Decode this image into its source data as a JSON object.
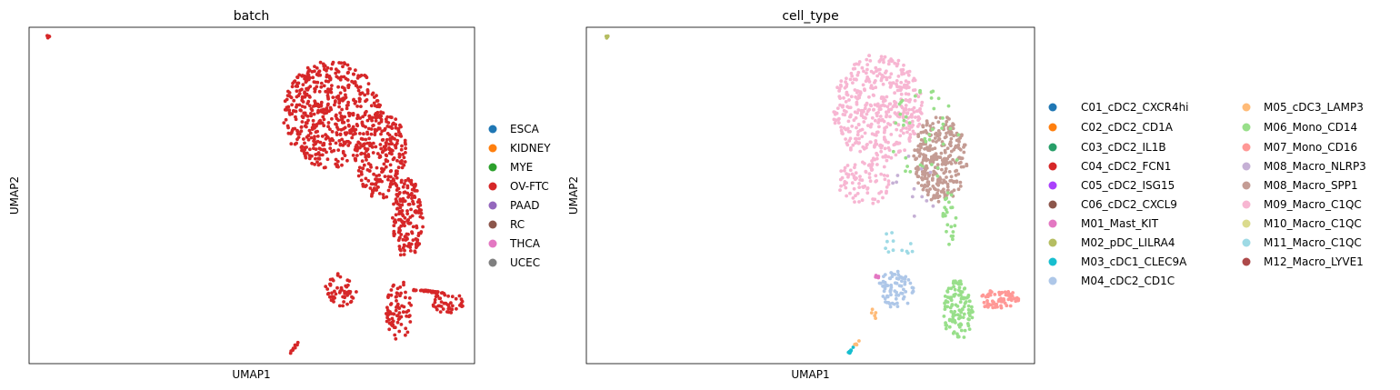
{
  "chart_data": [
    {
      "type": "scatter",
      "title": "batch",
      "xlabel": "UMAP1",
      "ylabel": "UMAP2",
      "xlim": [
        0,
        10
      ],
      "ylim": [
        0,
        10
      ],
      "grid": false,
      "ticks_visible": false,
      "legend_placement": "right",
      "legend_columns": 1,
      "legend": [
        {
          "name": "ESCA",
          "color": "#1f77b4"
        },
        {
          "name": "KIDNEY",
          "color": "#ff7f0e"
        },
        {
          "name": "MYE",
          "color": "#2ca02c"
        },
        {
          "name": "OV-FTC",
          "color": "#d62728"
        },
        {
          "name": "PAAD",
          "color": "#9467bd"
        },
        {
          "name": "RC",
          "color": "#8c564b"
        },
        {
          "name": "THCA",
          "color": "#e377c2"
        },
        {
          "name": "UCEC",
          "color": "#7f7f7f"
        }
      ],
      "regions": [
        {
          "category": "OV-FTC",
          "shape": "ellipse",
          "cx": 6.8,
          "cy": 7.4,
          "rx": 1.1,
          "ry": 1.6,
          "n": 520
        },
        {
          "category": "OV-FTC",
          "shape": "ellipse",
          "cx": 7.9,
          "cy": 6.2,
          "rx": 0.6,
          "ry": 1.3,
          "n": 240
        },
        {
          "category": "OV-FTC",
          "shape": "ellipse",
          "cx": 8.5,
          "cy": 4.3,
          "rx": 0.35,
          "ry": 1.2,
          "n": 170
        },
        {
          "category": "OV-FTC",
          "shape": "ellipse",
          "cx": 8.3,
          "cy": 1.6,
          "rx": 0.3,
          "ry": 0.9,
          "n": 80
        },
        {
          "category": "OV-FTC",
          "shape": "ellipse",
          "cx": 9.4,
          "cy": 1.8,
          "rx": 0.35,
          "ry": 0.35,
          "n": 45
        },
        {
          "category": "OV-FTC",
          "shape": "ellipse",
          "cx": 7.0,
          "cy": 2.2,
          "rx": 0.35,
          "ry": 0.5,
          "n": 55
        },
        {
          "category": "OV-FTC",
          "shape": "ellipse",
          "cx": 0.42,
          "cy": 9.72,
          "rx": 0.04,
          "ry": 0.04,
          "n": 6
        },
        {
          "category": "OV-FTC",
          "shape": "line",
          "x0": 5.85,
          "y0": 0.3,
          "x1": 6.05,
          "y1": 0.65,
          "n": 10
        },
        {
          "category": "OV-FTC",
          "shape": "line",
          "x0": 8.6,
          "y0": 2.2,
          "x1": 9.3,
          "y1": 2.1,
          "n": 35
        }
      ]
    },
    {
      "type": "scatter",
      "title": "cell_type",
      "xlabel": "UMAP1",
      "ylabel": "UMAP2",
      "xlim": [
        0,
        10
      ],
      "ylim": [
        0,
        10
      ],
      "grid": false,
      "ticks_visible": false,
      "legend_placement": "right",
      "legend_columns": 2,
      "legend": [
        {
          "name": "C01_cDC2_CXCR4hi",
          "color": "#1f77b4"
        },
        {
          "name": "C02_cDC2_CD1A",
          "color": "#ff7f0e"
        },
        {
          "name": "C03_cDC2_IL1B",
          "color": "#279e68"
        },
        {
          "name": "C04_cDC2_FCN1",
          "color": "#d62728"
        },
        {
          "name": "C05_cDC2_ISG15",
          "color": "#aa40fc"
        },
        {
          "name": "C06_cDC2_CXCL9",
          "color": "#8c564b"
        },
        {
          "name": "M01_Mast_KIT",
          "color": "#e377c2"
        },
        {
          "name": "M02_pDC_LILRA4",
          "color": "#b5bd61"
        },
        {
          "name": "M03_cDC1_CLEC9A",
          "color": "#17becf"
        },
        {
          "name": "M04_cDC2_CD1C",
          "color": "#aec7e8"
        },
        {
          "name": "M05_cDC3_LAMP3",
          "color": "#ffbb78"
        },
        {
          "name": "M06_Mono_CD14",
          "color": "#98df8a"
        },
        {
          "name": "M07_Mono_CD16",
          "color": "#ff9896"
        },
        {
          "name": "M08_Macro_NLRP3",
          "color": "#c5b0d5"
        },
        {
          "name": "M08_Macro_SPP1",
          "color": "#c49c94"
        },
        {
          "name": "M09_Macro_C1QC",
          "color": "#f7b6d2"
        },
        {
          "name": "M10_Macro_C1QC",
          "color": "#dbdb8d"
        },
        {
          "name": "M11_Macro_C1QC",
          "color": "#9edae5"
        },
        {
          "name": "M12_Macro_LYVE1",
          "color": "#ad494a"
        }
      ],
      "regions": [
        {
          "category": "M09_Macro_C1QC",
          "shape": "ellipse",
          "cx": 6.5,
          "cy": 7.6,
          "rx": 1.0,
          "ry": 1.6,
          "n": 430
        },
        {
          "category": "M09_Macro_C1QC",
          "shape": "ellipse",
          "cx": 6.2,
          "cy": 5.4,
          "rx": 0.6,
          "ry": 0.7,
          "n": 80
        },
        {
          "category": "M08_Macro_SPP1",
          "shape": "ellipse",
          "cx": 7.9,
          "cy": 6.1,
          "rx": 0.6,
          "ry": 1.3,
          "n": 300
        },
        {
          "category": "M06_Mono_CD14",
          "shape": "ellipse",
          "cx": 8.3,
          "cy": 1.6,
          "rx": 0.35,
          "ry": 0.9,
          "n": 120
        },
        {
          "category": "M06_Mono_CD14",
          "shape": "ellipse",
          "cx": 8.1,
          "cy": 4.3,
          "rx": 0.15,
          "ry": 0.8,
          "n": 25
        },
        {
          "category": "M07_Mono_CD16",
          "shape": "ellipse",
          "cx": 9.2,
          "cy": 1.9,
          "rx": 0.45,
          "ry": 0.3,
          "n": 70
        },
        {
          "category": "M04_cDC2_CD1C",
          "shape": "ellipse",
          "cx": 6.9,
          "cy": 2.2,
          "rx": 0.4,
          "ry": 0.55,
          "n": 75
        },
        {
          "category": "M02_pDC_LILRA4",
          "shape": "ellipse",
          "cx": 0.45,
          "cy": 9.72,
          "rx": 0.04,
          "ry": 0.04,
          "n": 5
        },
        {
          "category": "M03_cDC1_CLEC9A",
          "shape": "line",
          "x0": 5.85,
          "y0": 0.3,
          "x1": 6.0,
          "y1": 0.55,
          "n": 7
        },
        {
          "category": "M05_cDC3_LAMP3",
          "shape": "line",
          "x0": 6.0,
          "y0": 0.55,
          "x1": 6.1,
          "y1": 0.7,
          "n": 4
        },
        {
          "category": "M01_Mast_KIT",
          "shape": "ellipse",
          "cx": 6.5,
          "cy": 2.6,
          "rx": 0.06,
          "ry": 0.06,
          "n": 5
        },
        {
          "category": "M06_Mono_CD14",
          "shape": "ellipse",
          "cx": 7.6,
          "cy": 6.8,
          "rx": 0.8,
          "ry": 1.5,
          "n": 40
        },
        {
          "category": "M11_Macro_C1QC",
          "shape": "ellipse",
          "cx": 6.9,
          "cy": 3.5,
          "rx": 0.4,
          "ry": 0.5,
          "n": 12
        },
        {
          "category": "M08_Macro_NLRP3",
          "shape": "ellipse",
          "cx": 7.2,
          "cy": 5.0,
          "rx": 0.6,
          "ry": 1.2,
          "n": 12
        },
        {
          "category": "M05_cDC3_LAMP3",
          "shape": "ellipse",
          "cx": 6.5,
          "cy": 1.5,
          "rx": 0.15,
          "ry": 0.2,
          "n": 5
        }
      ]
    }
  ]
}
